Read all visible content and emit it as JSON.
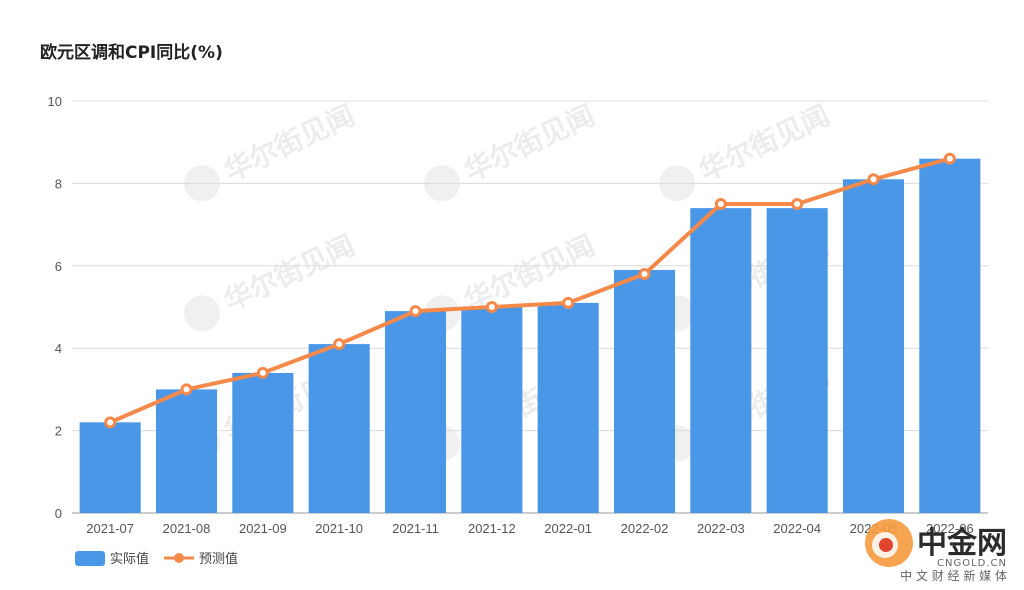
{
  "chart_data": {
    "type": "bar+line",
    "title": "欧元区调和CPI同比(%)",
    "categories": [
      "2021-07",
      "2021-08",
      "2021-09",
      "2021-10",
      "2021-11",
      "2021-12",
      "2022-01",
      "2022-02",
      "2022-03",
      "2022-04",
      "2022-05",
      "2022-06"
    ],
    "series": [
      {
        "name": "实际值",
        "type": "bar",
        "values": [
          2.2,
          3.0,
          3.4,
          4.1,
          4.9,
          5.0,
          5.1,
          5.9,
          7.4,
          7.4,
          8.1,
          8.6
        ]
      },
      {
        "name": "预测值",
        "type": "line",
        "values": [
          2.2,
          3.0,
          3.4,
          4.1,
          4.9,
          5.0,
          5.1,
          5.8,
          7.5,
          7.5,
          8.1,
          8.6
        ]
      }
    ],
    "yticks": [
      "0",
      "2",
      "4",
      "6",
      "8",
      "10"
    ],
    "ylim": [
      0,
      10
    ],
    "grid": true,
    "legend_position": "bottom-left",
    "colors": {
      "bar": "#4a97e8",
      "line": "#f5894a",
      "grid": "#dcdcdc"
    }
  },
  "watermark": {
    "text": "华尔街见闻"
  },
  "logo": {
    "name": "中金网",
    "url_text": "CNGOLD.CN",
    "tagline": "中 文 财 经 新 媒 体"
  }
}
